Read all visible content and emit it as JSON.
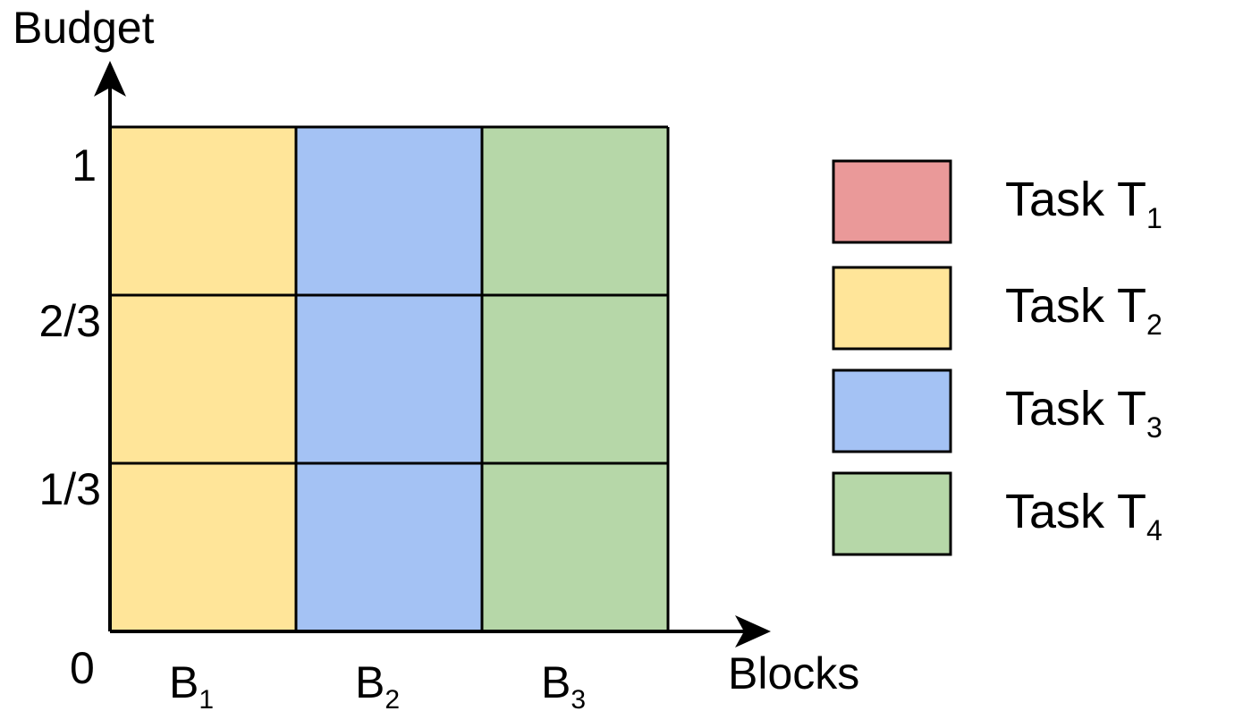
{
  "axis": {
    "y_title": "Budget",
    "x_title": "Blocks",
    "origin_label": "0",
    "y_ticks": [
      "1/3",
      "2/3",
      "1"
    ]
  },
  "blocks": [
    {
      "main": "B",
      "sub": "1",
      "task": "T2"
    },
    {
      "main": "B",
      "sub": "2",
      "task": "T3"
    },
    {
      "main": "B",
      "sub": "3",
      "task": "T4"
    }
  ],
  "budget_rows": 3,
  "legend": [
    {
      "id": "T1",
      "main": "Task T",
      "sub": "1",
      "color": "#ea9999"
    },
    {
      "id": "T2",
      "main": "Task T",
      "sub": "2",
      "color": "#ffe599"
    },
    {
      "id": "T3",
      "main": "Task T",
      "sub": "3",
      "color": "#a4c2f4"
    },
    {
      "id": "T4",
      "main": "Task T",
      "sub": "4",
      "color": "#b6d7a8"
    }
  ]
}
